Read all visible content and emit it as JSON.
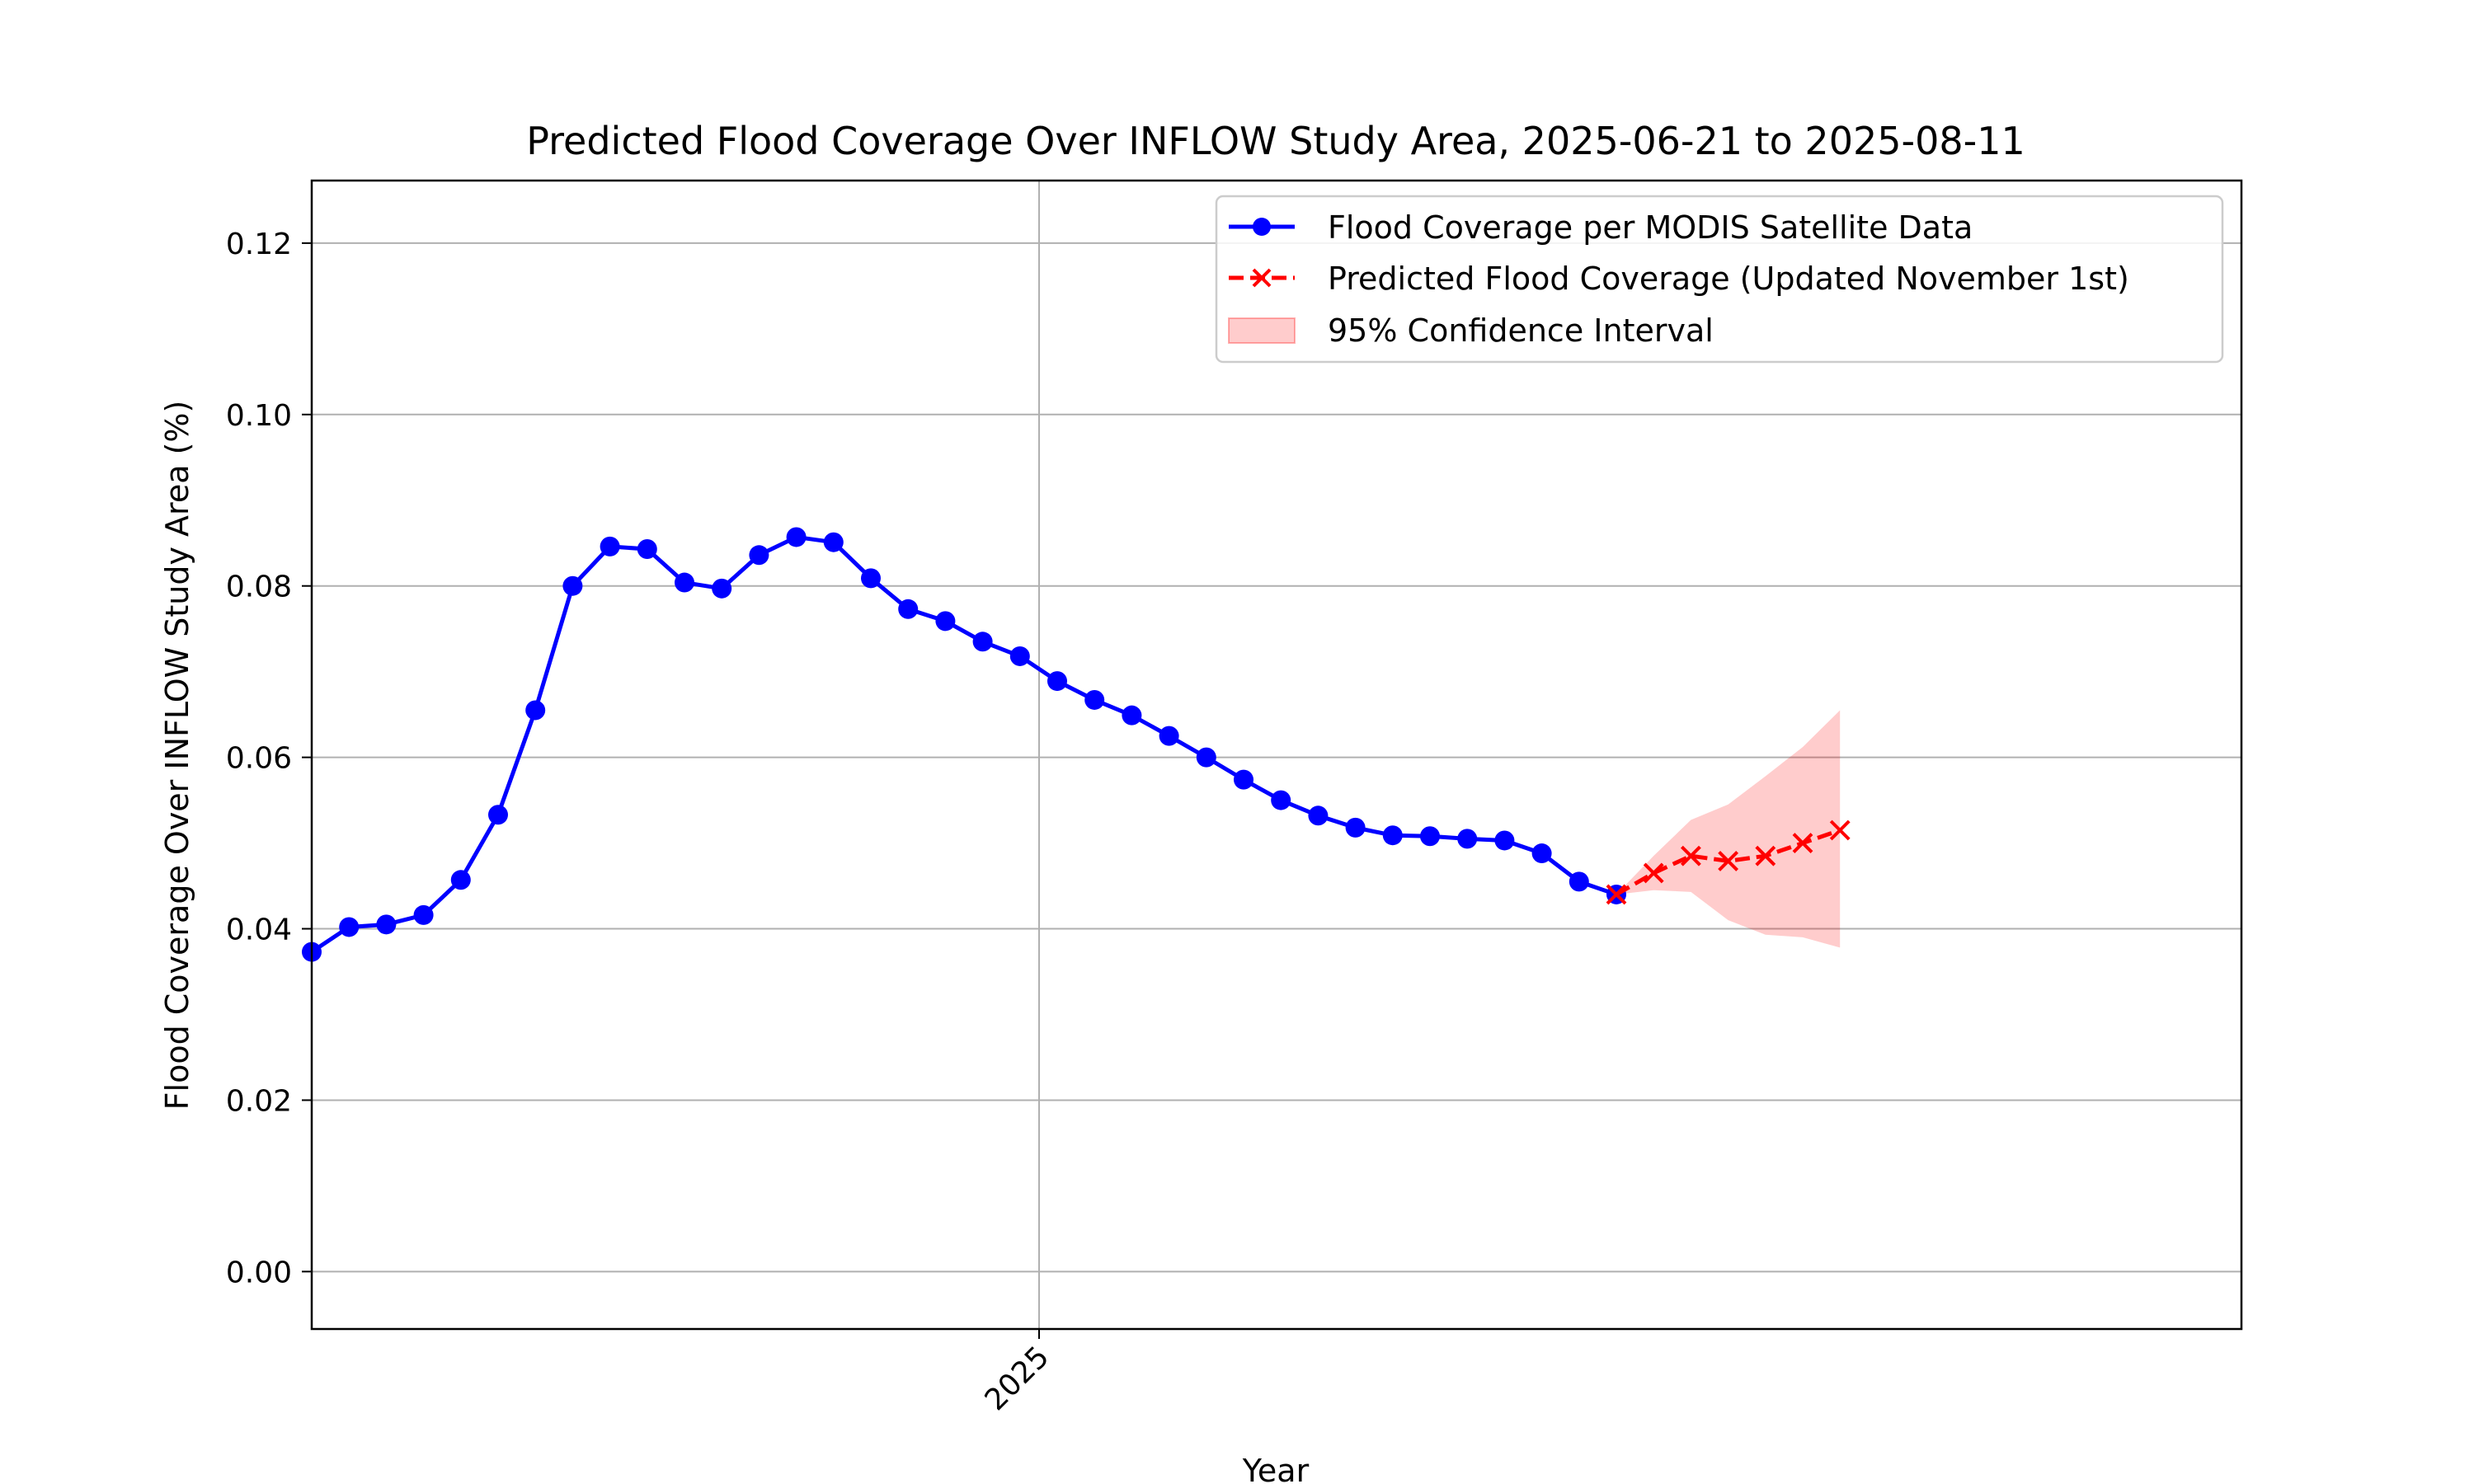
{
  "chart_data": {
    "type": "line",
    "title": "Predicted Flood Coverage Over INFLOW Study Area, 2025-06-21 to 2025-08-11",
    "xlabel": "Year",
    "ylabel": "Flood Coverage Over INFLOW Study Area (%)",
    "ylim": [
      -0.0067,
      0.1273
    ],
    "yticks": [
      0.0,
      0.02,
      0.04,
      0.06,
      0.08,
      0.1,
      0.12
    ],
    "ytick_labels": [
      "0.00",
      "0.02",
      "0.04",
      "0.06",
      "0.08",
      "0.10",
      "0.12"
    ],
    "x_tick_label": "2025",
    "grid": true,
    "legend_position": "top-right",
    "series": [
      {
        "name": "Flood Coverage per MODIS Satellite Data",
        "style": "solid line with circle markers",
        "color": "#0000ff",
        "values": [
          0.0373,
          0.0402,
          0.0405,
          0.0416,
          0.0457,
          0.0533,
          0.0655,
          0.08,
          0.0846,
          0.0843,
          0.0804,
          0.0797,
          0.0836,
          0.0857,
          0.0851,
          0.0809,
          0.0773,
          0.0759,
          0.0735,
          0.0718,
          0.0689,
          0.0667,
          0.0649,
          0.0625,
          0.06,
          0.0574,
          0.055,
          0.0532,
          0.0518,
          0.0509,
          0.0508,
          0.0505,
          0.0503,
          0.0488,
          0.0455,
          0.044
        ]
      },
      {
        "name": "Predicted Flood Coverage (Updated November 1st)",
        "style": "dashed line with x markers",
        "color": "#ff0000",
        "values": [
          0.044,
          0.0465,
          0.0485,
          0.0479,
          0.0485,
          0.05,
          0.0515
        ]
      },
      {
        "name": "95% Confidence Interval",
        "style": "shaded band",
        "color": "#ff0000",
        "lower": [
          0.044,
          0.0445,
          0.0443,
          0.041,
          0.0393,
          0.039,
          0.0378
        ],
        "upper": [
          0.044,
          0.0485,
          0.0527,
          0.0545,
          0.0578,
          0.0612,
          0.0655
        ]
      }
    ]
  }
}
